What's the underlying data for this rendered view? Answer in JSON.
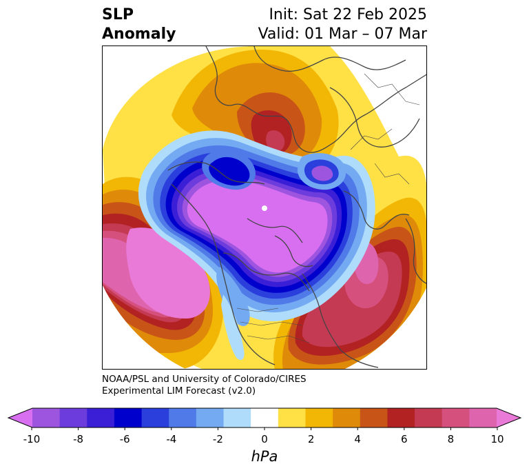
{
  "title": {
    "left_line1": "SLP",
    "left_line2": "Anomaly",
    "init": "Init: Sat 22 Feb 2025",
    "valid": "Valid: 01 Mar – 07 Mar"
  },
  "credit": {
    "line1": "NOAA/PSL and University of Colorado/CIRES",
    "line2": "Experimental LIM Forecast (v2.0)"
  },
  "colorbar": {
    "units": "hPa",
    "tick_labels": [
      "-10",
      "-8",
      "-6",
      "-4",
      "-2",
      "0",
      "2",
      "4",
      "6",
      "8",
      "10"
    ],
    "colors": [
      "#d86ff0",
      "#9d55e0",
      "#6c3cdc",
      "#3a1fd6",
      "#0000cc",
      "#2a3fdc",
      "#4f7ae8",
      "#74aaf2",
      "#aedcfa",
      "#ffffff",
      "#ffe146",
      "#f2b705",
      "#e08a0a",
      "#c85517",
      "#b22222",
      "#c43a52",
      "#d6507e",
      "#de64ae",
      "#e97ad8"
    ]
  },
  "colors": {
    "land_outline": "#444444",
    "frame": "#000000"
  }
}
